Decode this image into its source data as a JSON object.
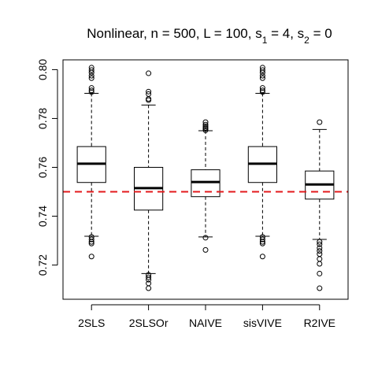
{
  "chart_data": {
    "type": "boxplot",
    "title_parts": [
      {
        "t": "Nonlinear, n = 500, L = 100, s"
      },
      {
        "t": "1",
        "sub": true
      },
      {
        "t": " = 4, s"
      },
      {
        "t": "2",
        "sub": true
      },
      {
        "t": " = 0"
      }
    ],
    "xlabel": "",
    "ylabel": "",
    "ylim": [
      0.706,
      0.804
    ],
    "yticks": [
      0.72,
      0.74,
      0.76,
      0.78,
      0.8
    ],
    "ytick_labels": [
      "0.72",
      "0.74",
      "0.76",
      "0.78",
      "0.80"
    ],
    "categories": [
      "2SLS",
      "2SLSOr",
      "NAIVE",
      "sisVIVE",
      "R2IVE"
    ],
    "boxes": [
      {
        "name": "2SLS",
        "whisker_low": 0.7318,
        "q1": 0.7538,
        "median": 0.7615,
        "q3": 0.7685,
        "whisker_high": 0.7903,
        "outliers": [
          0.8008,
          0.7998,
          0.7988,
          0.7975,
          0.7965,
          0.7925,
          0.7915,
          0.7908,
          0.7315,
          0.7305,
          0.7295,
          0.7288,
          0.7235
        ]
      },
      {
        "name": "2SLSOr",
        "whisker_low": 0.7165,
        "q1": 0.7425,
        "median": 0.7515,
        "q3": 0.76,
        "whisker_high": 0.7855,
        "outliers": [
          0.7985,
          0.791,
          0.79,
          0.788,
          0.7875,
          0.716,
          0.715,
          0.714,
          0.7125,
          0.7105
        ]
      },
      {
        "name": "NAIVE",
        "whisker_low": 0.7315,
        "q1": 0.748,
        "median": 0.754,
        "q3": 0.759,
        "whisker_high": 0.775,
        "outliers": [
          0.7785,
          0.7775,
          0.7768,
          0.7762,
          0.7758,
          0.7752,
          0.7312,
          0.7262
        ]
      },
      {
        "name": "sisVIVE",
        "whisker_low": 0.7318,
        "q1": 0.7538,
        "median": 0.7615,
        "q3": 0.7685,
        "whisker_high": 0.7903,
        "outliers": [
          0.8008,
          0.7998,
          0.7988,
          0.7975,
          0.7965,
          0.7925,
          0.7915,
          0.7908,
          0.7315,
          0.7305,
          0.7295,
          0.7288,
          0.7235
        ]
      },
      {
        "name": "R2IVE",
        "whisker_low": 0.7305,
        "q1": 0.747,
        "median": 0.753,
        "q3": 0.7585,
        "whisker_high": 0.7755,
        "outliers": [
          0.7785,
          0.7295,
          0.7285,
          0.727,
          0.7258,
          0.7245,
          0.7225,
          0.7205,
          0.7165,
          0.7105
        ]
      }
    ],
    "reference_line": {
      "value": 0.75,
      "color": "#e31a1c",
      "style": "dashed"
    },
    "grid": false
  }
}
